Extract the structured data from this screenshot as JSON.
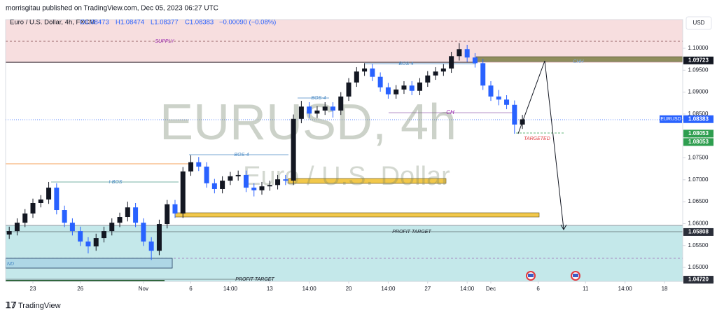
{
  "header": {
    "publisher": "morrisgitau published on TradingView.com, Dec 05, 2023 06:27 UTC"
  },
  "chart_data": {
    "type": "candlestick",
    "legend": {
      "symbol": "Euro / U.S. Dollar, 4h, FXCM",
      "open": "O1.08473",
      "high": "H1.08474",
      "low": "L1.08377",
      "close": "C1.08383",
      "change": "−0.00090 (−0.08%)"
    },
    "currency": "USD",
    "watermark": {
      "symbol": "EURUSD, 4h",
      "description": "Euro / U.S. Dollar"
    },
    "up_color": "#131722",
    "down_color": "#2962ff",
    "x": [
      -1.5,
      -1,
      -0.5,
      0,
      0.5,
      1,
      1.5,
      2,
      2.5,
      3,
      3.5,
      4,
      4.5,
      5,
      5.5,
      6,
      6.5,
      7,
      7.5,
      8,
      8.5,
      9,
      9.5,
      10,
      10.5,
      11,
      11.5,
      12,
      12.5,
      13,
      13.5,
      14,
      14.5,
      15,
      15.5,
      16,
      16.5,
      17,
      17.5,
      18,
      18.5,
      19,
      19.5,
      20,
      20.5,
      21,
      21.5,
      22,
      22.5,
      23,
      23.5,
      24,
      24.5,
      25,
      25.5,
      26,
      26.5,
      27,
      27.5,
      28,
      28.5,
      29,
      29.5,
      30,
      30.5,
      31
    ],
    "open": [
      1.0575,
      1.0583,
      1.0602,
      1.0623,
      1.0647,
      1.0655,
      1.0682,
      1.0631,
      1.0602,
      1.0583,
      1.0559,
      1.0548,
      1.0567,
      1.0583,
      1.0602,
      1.0615,
      1.0637,
      1.0602,
      1.0559,
      1.0538,
      1.0599,
      1.0644,
      1.0623,
      1.0719,
      1.074,
      1.073,
      1.0692,
      1.0679,
      1.0698,
      1.0708,
      1.0711,
      1.0682,
      1.0676,
      1.0685,
      1.0688,
      1.0701,
      1.0698,
      1.0839,
      1.0867,
      1.0851,
      1.0858,
      1.0867,
      1.0858,
      1.089,
      1.0922,
      1.0947,
      1.0954,
      1.0935,
      1.0911,
      1.0895,
      1.0906,
      1.0915,
      1.0903,
      1.0922,
      1.0938,
      1.0947,
      1.0954,
      1.0982,
      1.0998,
      1.0979,
      1.0966,
      1.0915,
      1.089,
      1.0883,
      1.0871,
      1.0826
    ],
    "high": [
      1.0593,
      1.0612,
      1.0633,
      1.0657,
      1.0665,
      1.0695,
      1.0692,
      1.0641,
      1.0612,
      1.0593,
      1.0569,
      1.0577,
      1.0593,
      1.0612,
      1.0625,
      1.065,
      1.0647,
      1.0612,
      1.0569,
      1.0609,
      1.0654,
      1.0654,
      1.0729,
      1.0756,
      1.0752,
      1.074,
      1.0702,
      1.0708,
      1.0718,
      1.0721,
      1.0721,
      1.0692,
      1.0695,
      1.0698,
      1.0711,
      1.0711,
      1.0849,
      1.088,
      1.0877,
      1.0868,
      1.0877,
      1.0877,
      1.09,
      1.0932,
      1.0957,
      1.0966,
      1.0964,
      1.0945,
      1.0921,
      1.0916,
      1.0925,
      1.0925,
      1.0932,
      1.0948,
      1.0957,
      1.0964,
      1.0992,
      1.1012,
      1.1008,
      1.0989,
      1.0976,
      1.0925,
      1.0905,
      1.0893,
      1.0881,
      1.0848
    ],
    "low": [
      1.0565,
      1.0573,
      1.0592,
      1.0613,
      1.0637,
      1.0645,
      1.0621,
      1.0592,
      1.0573,
      1.0549,
      1.0532,
      1.0538,
      1.0557,
      1.0573,
      1.0592,
      1.0605,
      1.0592,
      1.0549,
      1.0517,
      1.0528,
      1.0589,
      1.0613,
      1.0613,
      1.0709,
      1.072,
      1.0682,
      1.0669,
      1.0669,
      1.0688,
      1.0698,
      1.0672,
      1.0662,
      1.0666,
      1.0675,
      1.0678,
      1.0688,
      1.0688,
      1.0829,
      1.0841,
      1.0841,
      1.0848,
      1.0842,
      1.0848,
      1.088,
      1.0912,
      1.0937,
      1.0925,
      1.0901,
      1.0885,
      1.0885,
      1.0896,
      1.0893,
      1.0893,
      1.0912,
      1.0928,
      1.0937,
      1.0944,
      1.0972,
      1.0969,
      1.0956,
      1.0905,
      1.088,
      1.087,
      1.0861,
      1.0805,
      1.0816
    ],
    "close": [
      1.0583,
      1.0602,
      1.0623,
      1.0647,
      1.0655,
      1.0682,
      1.0631,
      1.0602,
      1.0583,
      1.0559,
      1.0548,
      1.0567,
      1.0583,
      1.0602,
      1.0615,
      1.0637,
      1.0602,
      1.0559,
      1.0538,
      1.0599,
      1.0644,
      1.0623,
      1.0719,
      1.074,
      1.073,
      1.0692,
      1.0679,
      1.0698,
      1.0708,
      1.0711,
      1.0682,
      1.0676,
      1.0685,
      1.0688,
      1.0701,
      1.0698,
      1.0839,
      1.0867,
      1.0851,
      1.0858,
      1.0867,
      1.0858,
      1.089,
      1.0922,
      1.0947,
      1.0954,
      1.0935,
      1.0911,
      1.0895,
      1.0906,
      1.0915,
      1.0903,
      1.0922,
      1.0938,
      1.0947,
      1.0954,
      1.0982,
      1.0998,
      1.0979,
      1.0966,
      1.0915,
      1.089,
      1.0883,
      1.0871,
      1.0826,
      1.0838
    ],
    "xlim": [
      -1.73,
      41.15
    ],
    "ylim": [
      1.04681,
      1.10655
    ],
    "xticks": [
      {
        "value": 0,
        "label": "23"
      },
      {
        "value": 3,
        "label": "26"
      },
      {
        "value": 7,
        "label": "Nov"
      },
      {
        "value": 10,
        "label": "6"
      },
      {
        "value": 12.5,
        "label": "14:00"
      },
      {
        "value": 15,
        "label": "13"
      },
      {
        "value": 17.5,
        "label": "14:00"
      },
      {
        "value": 20,
        "label": "20"
      },
      {
        "value": 22.5,
        "label": "14:00"
      },
      {
        "value": 25,
        "label": "27"
      },
      {
        "value": 27.5,
        "label": "14:00"
      },
      {
        "value": 29,
        "label": "Dec"
      },
      {
        "value": 32,
        "label": "6"
      },
      {
        "value": 35,
        "label": "11"
      },
      {
        "value": 37.5,
        "label": "14:00"
      },
      {
        "value": 40,
        "label": "18"
      }
    ],
    "yticks": [
      {
        "value": 1.1,
        "label": "1.10000"
      },
      {
        "value": 1.095,
        "label": "1.09500"
      },
      {
        "value": 1.09,
        "label": "1.09000"
      },
      {
        "value": 1.085,
        "label": "1.08500"
      },
      {
        "value": 1.08,
        "label": "1.08000"
      },
      {
        "value": 1.075,
        "label": "1.07500"
      },
      {
        "value": 1.07,
        "label": "1.07000"
      },
      {
        "value": 1.065,
        "label": "1.06500"
      },
      {
        "value": 1.06,
        "label": "1.06000"
      },
      {
        "value": 1.055,
        "label": "1.05500"
      },
      {
        "value": 1.05,
        "label": "1.05000"
      }
    ],
    "price_tags": [
      {
        "value": 1.09723,
        "label": "1.09723",
        "color": "#131722"
      },
      {
        "value": 1.08383,
        "label": "1.08383",
        "color": "#2962ff"
      },
      {
        "value": 1.08053,
        "label": "1.08053",
        "color": "#2e9e4f"
      },
      {
        "value": 1.08053,
        "label": "1.08053",
        "color": "#2e9e4f"
      },
      {
        "value": 1.05808,
        "label": "1.05808",
        "color": "#2a2e39"
      },
      {
        "value": 1.0472,
        "label": "1.04720",
        "color": "#2a2e39"
      }
    ],
    "symbol_tag": "EURUSD",
    "annotations": [
      "SUPPLY",
      "I-BOS",
      "BOS-4",
      "BOS-4",
      "BOS-4",
      "CH",
      "CHH",
      "TARGETED",
      "PROFIT TARGET",
      "PROFIT TARGET",
      "ND"
    ]
  },
  "footer": {
    "brand": "TradingView"
  }
}
